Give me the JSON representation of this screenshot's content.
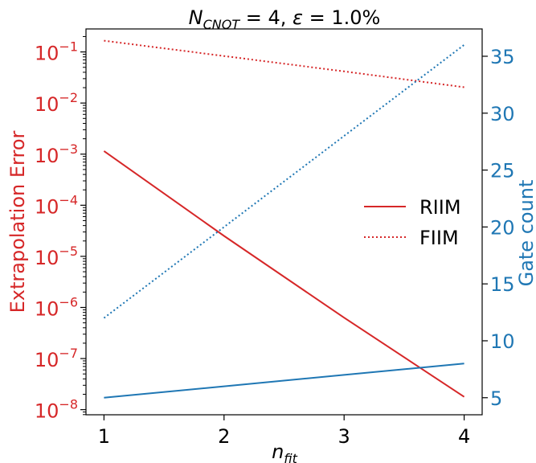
{
  "chart_data": {
    "type": "line",
    "title": {
      "n_main": "N",
      "n_sub": "CNOT",
      "rest": " = 4, ",
      "eps": "ε",
      "rest2": " = 1.0%"
    },
    "xlabel": {
      "main": "n",
      "sub": "fit"
    },
    "ylabel_left": "Extrapolation Error",
    "ylabel_right": "Gate count",
    "x": [
      1,
      2,
      3,
      4
    ],
    "xlim": [
      0.85,
      4.15
    ],
    "xticks": [
      "1",
      "2",
      "3",
      "4"
    ],
    "left_axis": {
      "scale": "log",
      "ylim_log10": [
        -8.1,
        -0.55
      ],
      "tick_exponents": [
        -8,
        -7,
        -6,
        -5,
        -4,
        -3,
        -2,
        -1
      ],
      "tick_base": "10",
      "color": "#d62728"
    },
    "right_axis": {
      "scale": "linear",
      "ylim": [
        3.5,
        37.4
      ],
      "ticks": [
        5,
        10,
        15,
        20,
        25,
        30,
        35
      ],
      "color": "#1f77b4"
    },
    "series": [
      {
        "name": "RIIM",
        "axis": "left",
        "style": "solid",
        "color": "#d62728",
        "y_log10": [
          -2.94,
          -4.6,
          -6.2,
          -7.75
        ]
      },
      {
        "name": "FIIM",
        "axis": "left",
        "style": "dotted",
        "color": "#d62728",
        "y_log10": [
          -0.78,
          -1.08,
          -1.38,
          -1.69
        ]
      },
      {
        "axis": "right",
        "style": "solid",
        "color": "#1f77b4",
        "y": [
          5,
          6,
          7,
          8
        ]
      },
      {
        "axis": "right",
        "style": "dotted",
        "color": "#1f77b4",
        "y": [
          12,
          20,
          28,
          36
        ]
      }
    ],
    "legend": {
      "position": "center-right",
      "entries": [
        "RIIM",
        "FIIM"
      ]
    }
  }
}
